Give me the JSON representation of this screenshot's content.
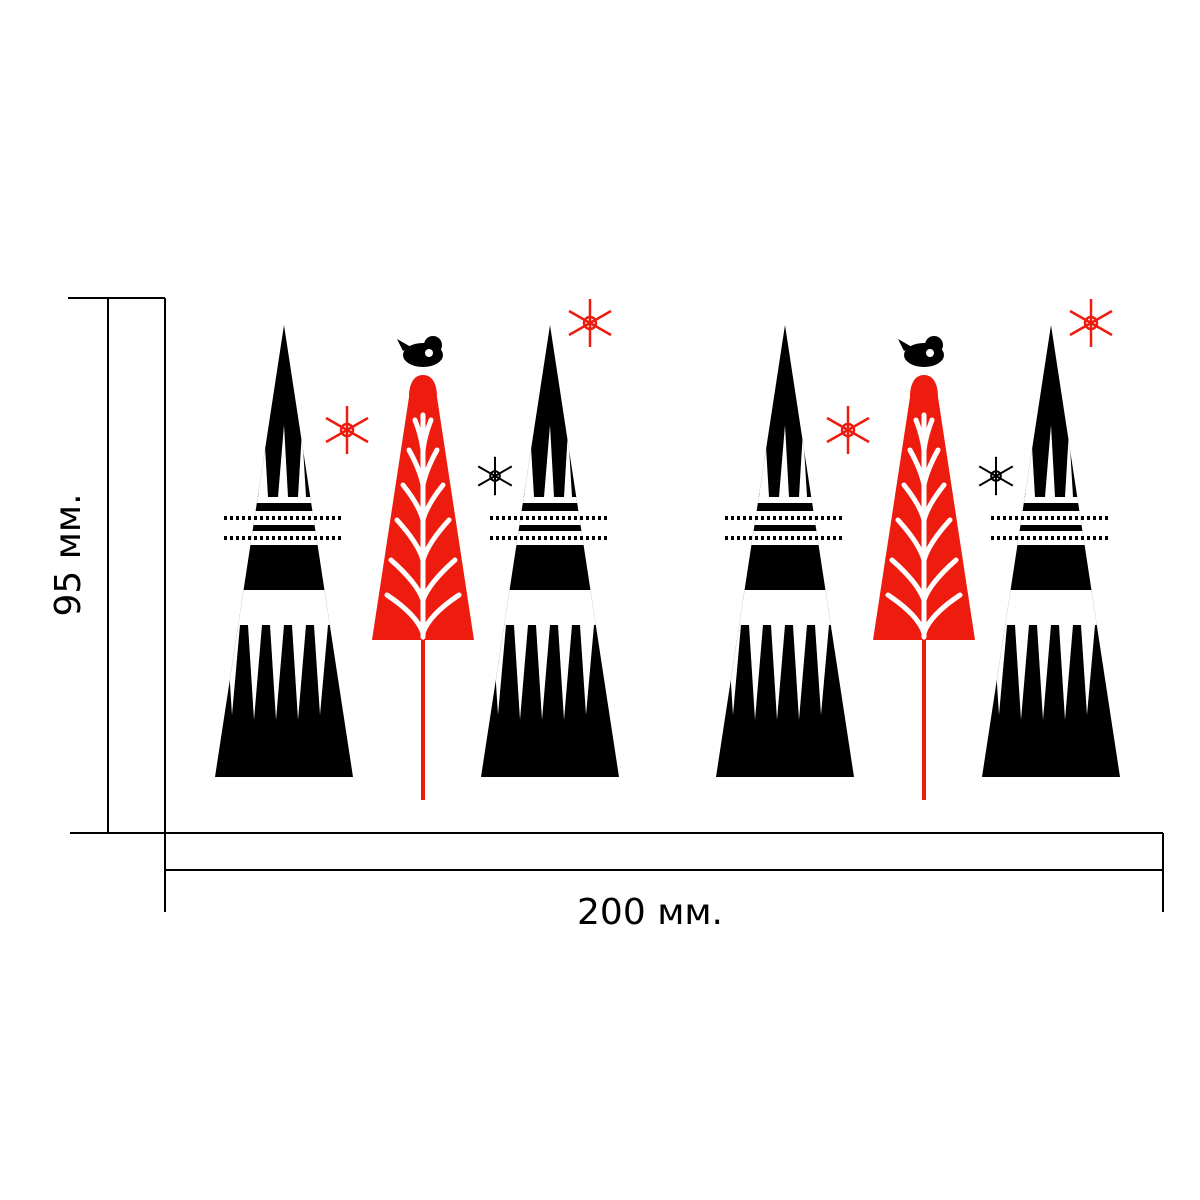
{
  "dimensions": {
    "height_label": "95 мм.",
    "width_label": "200 мм."
  }
}
